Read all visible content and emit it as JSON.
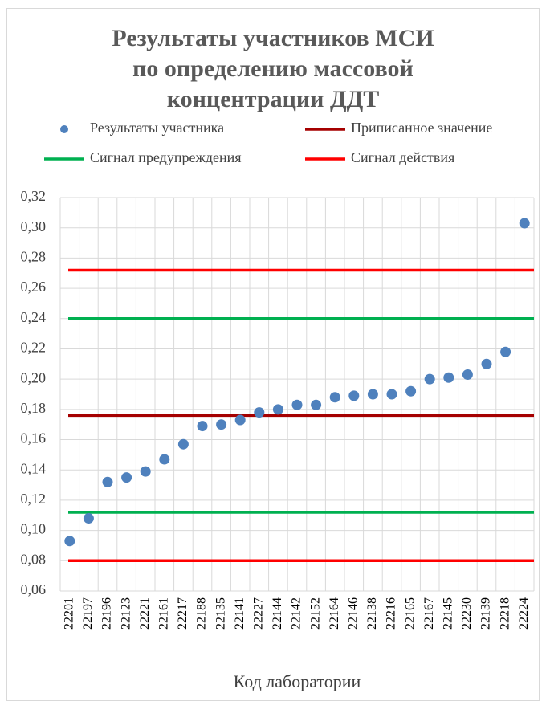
{
  "chart_data": {
    "type": "scatter",
    "title": [
      "Результаты участников МСИ",
      "по определению массовой",
      "концентрации ДДТ"
    ],
    "x_label": "Код лаборатории",
    "categories": [
      "22201",
      "22197",
      "22196",
      "22123",
      "22221",
      "22161",
      "22217",
      "22188",
      "22135",
      "22141",
      "22227",
      "22144",
      "22142",
      "22152",
      "22164",
      "22146",
      "22138",
      "22216",
      "22165",
      "22167",
      "22145",
      "22230",
      "22139",
      "22218",
      "22224"
    ],
    "series": [
      {
        "name": "Результаты участника",
        "color": "#4f81bd",
        "values": [
          0.093,
          0.108,
          0.132,
          0.135,
          0.139,
          0.147,
          0.157,
          0.169,
          0.17,
          0.173,
          0.178,
          0.18,
          0.183,
          0.183,
          0.188,
          0.189,
          0.19,
          0.19,
          0.192,
          0.2,
          0.201,
          0.203,
          0.21,
          0.218,
          0.303
        ]
      }
    ],
    "lines": [
      {
        "name": "Приписанное значение",
        "color": "#a50000",
        "values": [
          0.176
        ]
      },
      {
        "name": "Сигнал предупреждения",
        "color": "#00b050",
        "values": [
          0.112,
          0.24
        ]
      },
      {
        "name": "Сигнал действия",
        "color": "#ff0000",
        "values": [
          0.08,
          0.272
        ]
      }
    ],
    "ylim": [
      0.06,
      0.32
    ],
    "yticks": [
      {
        "value": 0.06,
        "label": "0,06"
      },
      {
        "value": 0.08,
        "label": "0,08"
      },
      {
        "value": 0.1,
        "label": "0,10"
      },
      {
        "value": 0.12,
        "label": "0,12"
      },
      {
        "value": 0.14,
        "label": "0,14"
      },
      {
        "value": 0.16,
        "label": "0,16"
      },
      {
        "value": 0.18,
        "label": "0,18"
      },
      {
        "value": 0.2,
        "label": "0,20"
      },
      {
        "value": 0.22,
        "label": "0,22"
      },
      {
        "value": 0.24,
        "label": "0,24"
      },
      {
        "value": 0.26,
        "label": "0,26"
      },
      {
        "value": 0.28,
        "label": "0,28"
      },
      {
        "value": 0.3,
        "label": "0,30"
      },
      {
        "value": 0.32,
        "label": "0,32"
      }
    ],
    "grid": true
  }
}
